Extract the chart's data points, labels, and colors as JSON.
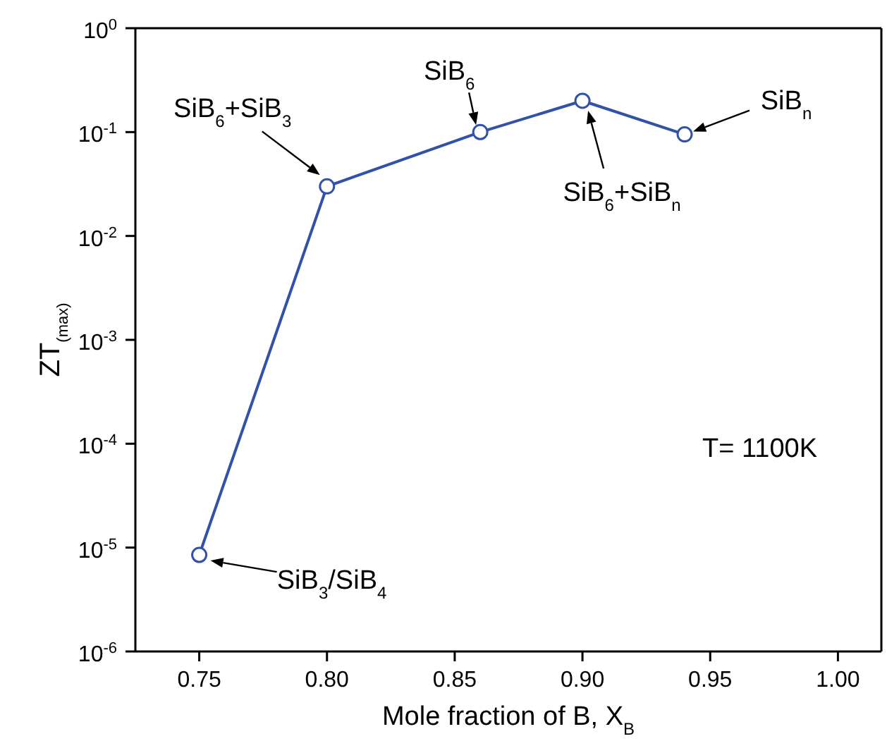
{
  "chart_data": {
    "type": "line",
    "xlabel": "Mole fraction of B, X$_{B}$",
    "ylabel": "ZT$_{(max)}$",
    "x": [
      0.75,
      0.8,
      0.86,
      0.9,
      0.94
    ],
    "series": [
      {
        "color": "#3152a8",
        "values": [
          8.5e-06,
          0.03,
          0.1,
          0.2,
          0.095
        ]
      }
    ],
    "xlim": [
      0.725,
      1.017
    ],
    "xticks": [
      {
        "value": 0.75,
        "label": "0.75"
      },
      {
        "value": 0.8,
        "label": "0.80"
      },
      {
        "value": 0.85,
        "label": "0.85"
      },
      {
        "value": 0.9,
        "label": "0.90"
      },
      {
        "value": 0.95,
        "label": "0.95"
      },
      {
        "value": 1.0,
        "label": "1.00"
      }
    ],
    "ylim": [
      1e-06,
      1
    ],
    "yticks": [
      {
        "value": 1e-06,
        "label": "10$^{-6}$"
      },
      {
        "value": 1e-05,
        "label": "10$^{-5}$"
      },
      {
        "value": 0.0001,
        "label": "10$^{-4}$"
      },
      {
        "value": 0.001,
        "label": "10$^{-3}$"
      },
      {
        "value": 0.01,
        "label": "10$^{-2}$"
      },
      {
        "value": 0.1,
        "label": "10$^{-1}$"
      },
      {
        "value": 1,
        "label": "10$^{0}$"
      }
    ],
    "log": "y",
    "marker": "circle",
    "line_style": "solid",
    "annotations": [
      {
        "text": "SiB$_{3}$/SiB$_{4}$",
        "x": 0.75,
        "y": 8.5e-06
      },
      {
        "text": "SiB$_{6}$+SiB$_{3}$",
        "x": 0.8,
        "y": 0.03
      },
      {
        "text": "SiB$_{6}$",
        "x": 0.86,
        "y": 0.1
      },
      {
        "text": "SiB$_{6}$+SiB$_{n}$",
        "x": 0.9,
        "y": 0.2
      },
      {
        "text": "SiB$_{n}$",
        "x": 0.94,
        "y": 0.095
      },
      "T= 1100K"
    ]
  }
}
